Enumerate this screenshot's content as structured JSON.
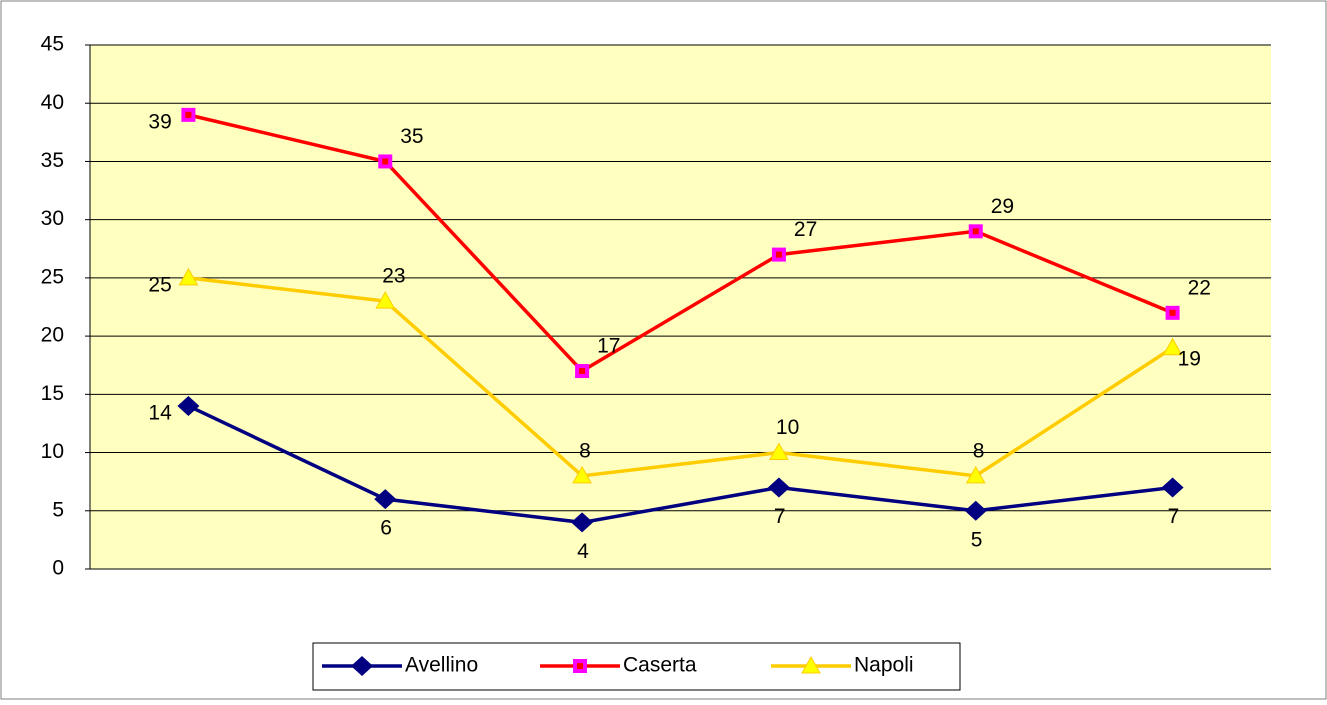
{
  "chart_data": {
    "type": "line",
    "categories": [
      null,
      null,
      null,
      null,
      null,
      null
    ],
    "series": [
      {
        "name": "Avellino",
        "color": "#000080",
        "marker": "diamond",
        "values": [
          14,
          6,
          4,
          7,
          5,
          7
        ]
      },
      {
        "name": "Caserta",
        "color": "#ff0000",
        "marker": "square",
        "values": [
          39,
          35,
          17,
          27,
          29,
          22
        ]
      },
      {
        "name": "Napoli",
        "color": "#ffcc00",
        "marker": "triangle",
        "values": [
          25,
          23,
          8,
          10,
          8,
          19
        ]
      }
    ],
    "ylim": [
      0,
      45
    ],
    "yticks": [
      0,
      5,
      10,
      15,
      20,
      25,
      30,
      35,
      40,
      45
    ],
    "grid": true,
    "legend": "bottom"
  }
}
